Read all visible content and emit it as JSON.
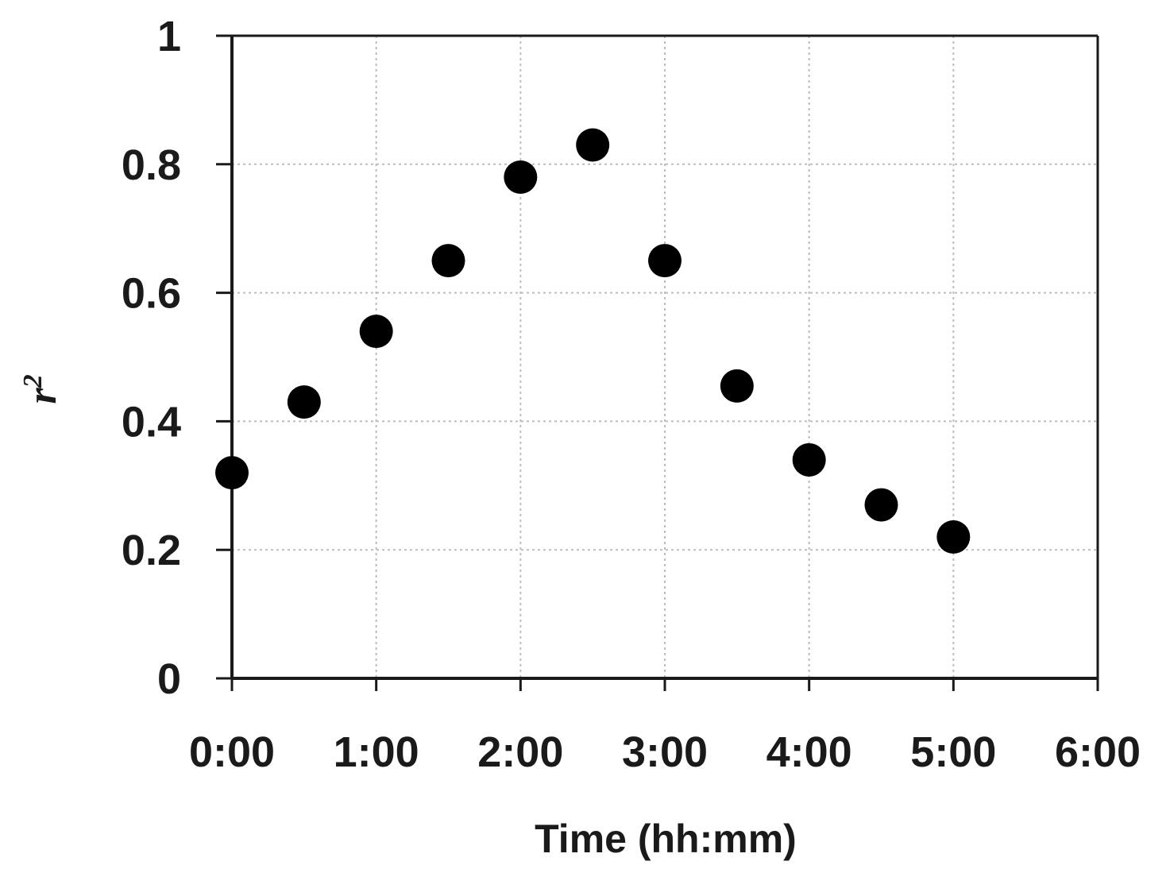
{
  "chart_data": {
    "type": "scatter",
    "xlabel": "Time (hh:mm)",
    "ylabel": {
      "base": "r",
      "superscript": "2"
    },
    "x_unit": "hh:mm",
    "xlim": [
      "0:00",
      "6:00"
    ],
    "ylim": [
      0,
      1
    ],
    "x_ticks": [
      "0:00",
      "1:00",
      "2:00",
      "3:00",
      "4:00",
      "5:00",
      "6:00"
    ],
    "y_ticks": [
      "0",
      "0.2",
      "0.4",
      "0.6",
      "0.8",
      "1"
    ],
    "grid": true,
    "marker_color": "#000000",
    "series": [
      {
        "points": [
          {
            "x": "0:00",
            "y": 0.32
          },
          {
            "x": "0:30",
            "y": 0.43
          },
          {
            "x": "1:00",
            "y": 0.54
          },
          {
            "x": "1:30",
            "y": 0.65
          },
          {
            "x": "2:00",
            "y": 0.78
          },
          {
            "x": "2:30",
            "y": 0.83
          },
          {
            "x": "3:00",
            "y": 0.65
          },
          {
            "x": "3:30",
            "y": 0.455
          },
          {
            "x": "4:00",
            "y": 0.34
          },
          {
            "x": "4:30",
            "y": 0.27
          },
          {
            "x": "5:00",
            "y": 0.22
          }
        ]
      }
    ]
  }
}
